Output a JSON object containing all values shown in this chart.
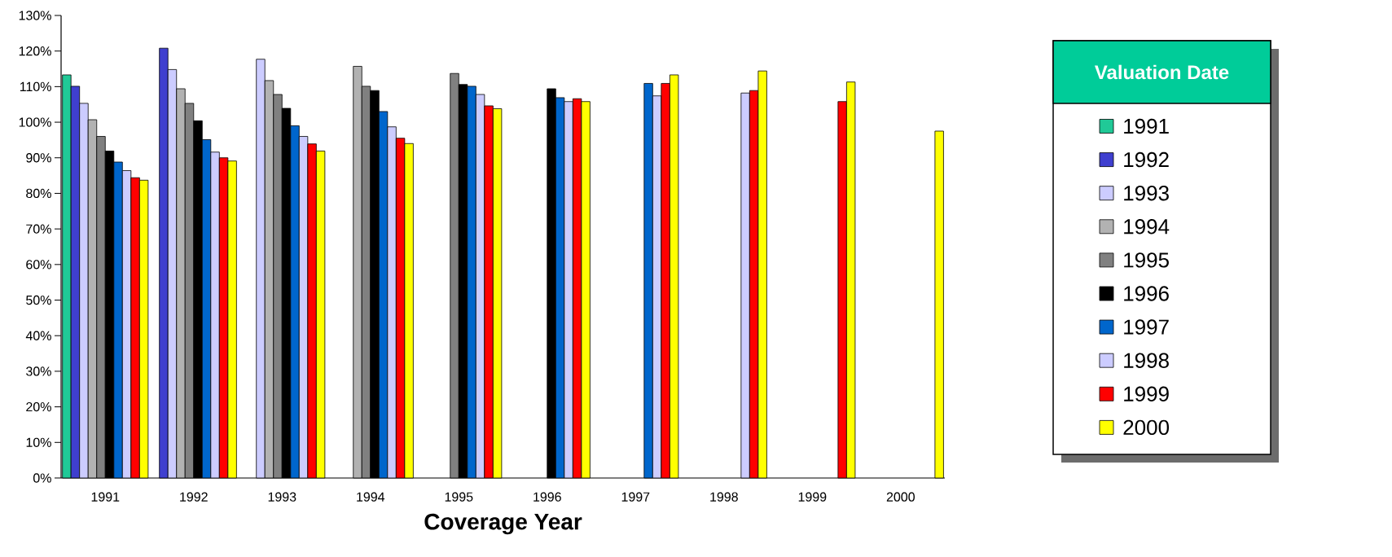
{
  "chart_data": {
    "type": "bar",
    "xlabel": "Coverage Year",
    "legend_title": "Valuation Date",
    "legend": "right",
    "grid": false,
    "categories": [
      "1991",
      "1992",
      "1993",
      "1994",
      "1995",
      "1996",
      "1997",
      "1998",
      "1999",
      "2000"
    ],
    "ylim": [
      0,
      130
    ],
    "yticks": [
      {
        "value": 0,
        "label": "0%"
      },
      {
        "value": 10,
        "label": "10%"
      },
      {
        "value": 20,
        "label": "20%"
      },
      {
        "value": 30,
        "label": "30%"
      },
      {
        "value": 40,
        "label": "40%"
      },
      {
        "value": 50,
        "label": "50%"
      },
      {
        "value": 60,
        "label": "60%"
      },
      {
        "value": 70,
        "label": "70%"
      },
      {
        "value": 80,
        "label": "80%"
      },
      {
        "value": 90,
        "label": "90%"
      },
      {
        "value": 100,
        "label": "100%"
      },
      {
        "value": 110,
        "label": "110%"
      },
      {
        "value": 120,
        "label": "120%"
      },
      {
        "value": 130,
        "label": "130%"
      }
    ],
    "series": [
      {
        "name": "1991",
        "color": "#20c997",
        "values": [
          113.3,
          null,
          null,
          null,
          null,
          null,
          null,
          null,
          null,
          null
        ]
      },
      {
        "name": "1992",
        "color": "#3f3fcf",
        "values": [
          110.1,
          120.8,
          null,
          null,
          null,
          null,
          null,
          null,
          null,
          null
        ]
      },
      {
        "name": "1993",
        "color": "#ccccff",
        "values": [
          105.3,
          114.8,
          117.7,
          null,
          null,
          null,
          null,
          null,
          null,
          null
        ]
      },
      {
        "name": "1994",
        "color": "#b2b2b2",
        "values": [
          100.7,
          109.4,
          111.7,
          115.7,
          null,
          null,
          null,
          null,
          null,
          null
        ]
      },
      {
        "name": "1995",
        "color": "#808080",
        "values": [
          96.0,
          105.3,
          107.8,
          110.1,
          113.7,
          null,
          null,
          null,
          null,
          null
        ]
      },
      {
        "name": "1996",
        "color": "#000000",
        "values": [
          91.9,
          100.4,
          103.9,
          108.9,
          110.6,
          109.4,
          null,
          null,
          null,
          null
        ]
      },
      {
        "name": "1997",
        "color": "#0066cc",
        "values": [
          88.8,
          95.1,
          99.0,
          103.0,
          110.1,
          106.9,
          110.9,
          null,
          null,
          null
        ]
      },
      {
        "name": "1998",
        "color": "#ccccff",
        "values": [
          86.4,
          91.6,
          96.0,
          98.7,
          107.8,
          105.8,
          107.4,
          108.2,
          null,
          null
        ]
      },
      {
        "name": "1999",
        "color": "#ff0000",
        "values": [
          84.4,
          90.0,
          93.9,
          95.5,
          104.6,
          106.6,
          110.9,
          108.9,
          105.8,
          null
        ]
      },
      {
        "name": "2000",
        "color": "#ffff00",
        "values": [
          83.7,
          89.1,
          91.9,
          94.0,
          103.8,
          105.8,
          113.3,
          114.4,
          111.3,
          97.5
        ]
      }
    ]
  }
}
